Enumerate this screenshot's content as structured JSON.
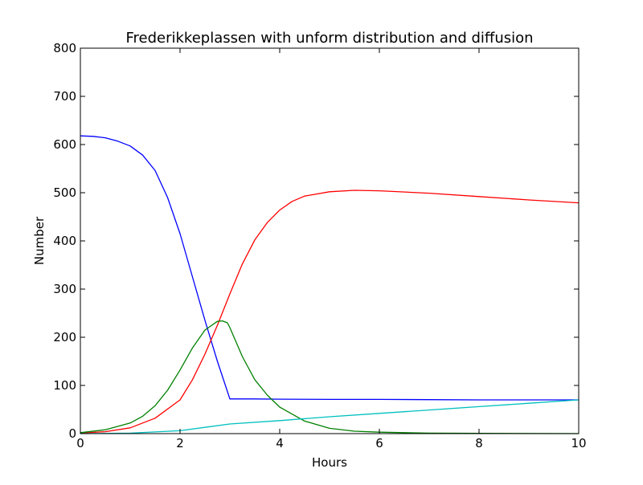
{
  "chart_data": {
    "type": "line",
    "title": "Frederikkeplassen with unform distribution and diffusion",
    "xlabel": "Hours",
    "ylabel": "Number",
    "xlim": [
      0,
      10
    ],
    "ylim": [
      0,
      800
    ],
    "xticks": [
      "0",
      "2",
      "4",
      "6",
      "8",
      "10"
    ],
    "yticks": [
      "0",
      "100",
      "200",
      "300",
      "400",
      "500",
      "600",
      "700",
      "800"
    ],
    "grid": false,
    "legend": "none",
    "series": [
      {
        "color": "#0000ff",
        "x": [
          0,
          0.25,
          0.5,
          0.75,
          1.0,
          1.25,
          1.5,
          1.75,
          2.0,
          2.25,
          2.5,
          2.75,
          3.0,
          3.5,
          4,
          5,
          6,
          7,
          8,
          9,
          10
        ],
        "y": [
          618,
          617,
          614,
          607,
          597,
          578,
          546,
          490,
          415,
          325,
          235,
          150,
          72,
          72,
          71.5,
          71,
          71,
          70.5,
          70,
          70,
          70
        ]
      },
      {
        "color": "#ff0000",
        "x": [
          0,
          0.5,
          1.0,
          1.5,
          2.0,
          2.25,
          2.5,
          2.75,
          3.0,
          3.25,
          3.5,
          3.75,
          4.0,
          4.25,
          4.5,
          5.0,
          5.5,
          6.0,
          7.0,
          8.0,
          9.0,
          10.0
        ],
        "y": [
          1,
          4,
          12,
          32,
          70,
          112,
          165,
          225,
          290,
          352,
          402,
          438,
          464,
          482,
          493,
          502,
          505,
          504,
          499,
          492,
          485,
          479
        ]
      },
      {
        "color": "#008000",
        "x": [
          0,
          0.5,
          1.0,
          1.25,
          1.5,
          1.75,
          2.0,
          2.25,
          2.5,
          2.75,
          2.85,
          2.95,
          3.0,
          3.25,
          3.5,
          3.75,
          4.0,
          4.5,
          5.0,
          5.5,
          6.0,
          7.0,
          8.0,
          10.0
        ],
        "y": [
          2,
          8,
          22,
          36,
          58,
          90,
          132,
          178,
          215,
          233,
          234,
          230,
          220,
          160,
          112,
          80,
          55,
          26,
          11,
          5,
          3,
          1,
          0.5,
          0
        ]
      },
      {
        "color": "#00bfbf",
        "x": [
          0,
          1.0,
          2.0,
          2.5,
          3.0,
          4.0,
          5.0,
          6.0,
          7.0,
          8.0,
          9.0,
          10.0
        ],
        "y": [
          0,
          1,
          6,
          13,
          20,
          27,
          35,
          42,
          49,
          56,
          63,
          70
        ]
      }
    ]
  }
}
